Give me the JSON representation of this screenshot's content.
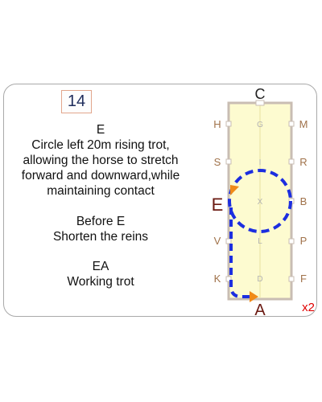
{
  "test_number": "14",
  "movements": [
    {
      "marker": "E",
      "lines": [
        "Circle left 20m rising trot,",
        "allowing the horse to stretch",
        "forward and downward,while",
        "maintaining contact"
      ]
    },
    {
      "marker": "Before E",
      "lines": [
        "Shorten the reins"
      ]
    },
    {
      "marker": "EA",
      "lines": [
        "Working trot"
      ]
    }
  ],
  "arena": {
    "top_letter": "C",
    "bottom_letter": "A",
    "left_letters": [
      "H",
      "S",
      "E",
      "V",
      "K"
    ],
    "right_letters": [
      "M",
      "R",
      "B",
      "P",
      "F"
    ],
    "centre_letters": [
      "G",
      "I",
      "X",
      "L",
      "D"
    ]
  },
  "repeat": "x2",
  "colors": {
    "arena_fill": "#fdfbd0",
    "arena_border": "#c9bdb3",
    "marker_letter": "#a0724a",
    "active_marker": "#6b1a12",
    "centre_letter": "#b3b3b3",
    "path": "#1c2ee0",
    "arrow": "#f08a18",
    "repeat": "#e00000"
  }
}
